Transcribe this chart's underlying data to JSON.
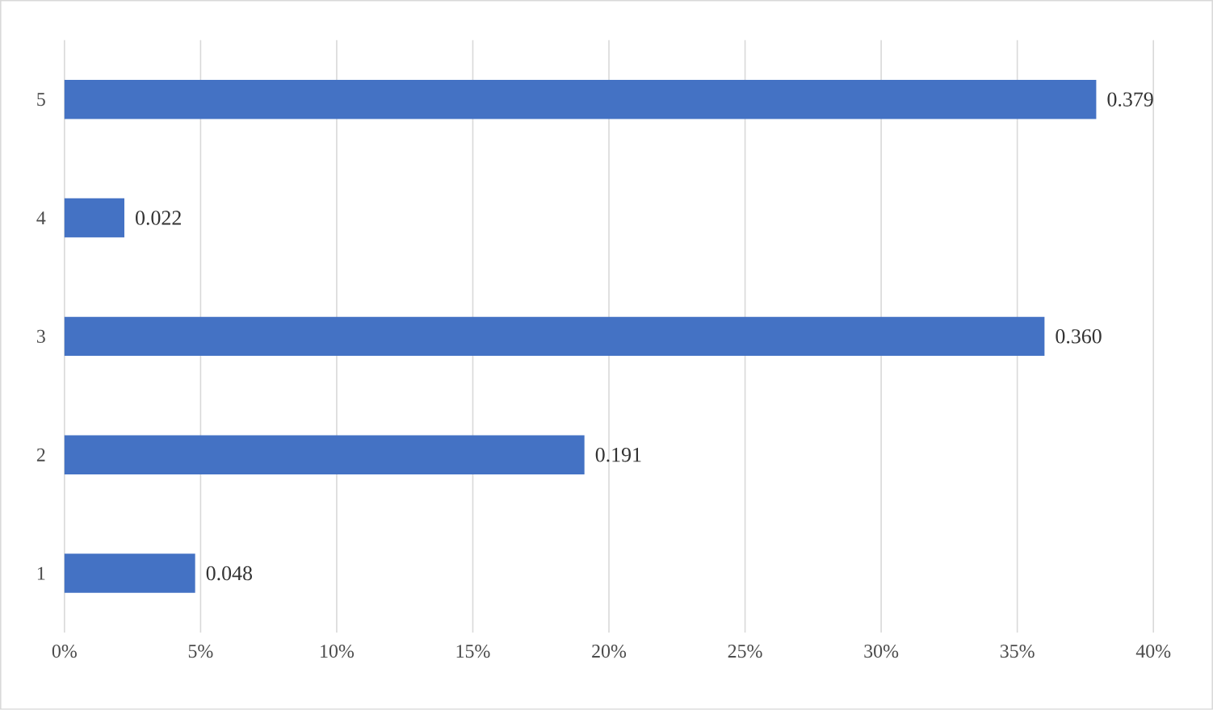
{
  "chart_data": {
    "type": "bar",
    "orientation": "horizontal",
    "categories": [
      "5",
      "4",
      "3",
      "2",
      "1"
    ],
    "values": [
      0.379,
      0.022,
      0.36,
      0.191,
      0.048
    ],
    "value_labels": [
      "0.379",
      "0.022",
      "0.360",
      "0.191",
      "0.048"
    ],
    "color": "#4472c4",
    "xlim": [
      0,
      0.4
    ],
    "xticks": [
      {
        "value": 0,
        "label": "0%"
      },
      {
        "value": 0.05,
        "label": "5%"
      },
      {
        "value": 0.1,
        "label": "10%"
      },
      {
        "value": 0.15,
        "label": "15%"
      },
      {
        "value": 0.2,
        "label": "20%"
      },
      {
        "value": 0.25,
        "label": "25%"
      },
      {
        "value": 0.3,
        "label": "30%"
      },
      {
        "value": 0.35,
        "label": "35%"
      },
      {
        "value": 0.4,
        "label": "40%"
      }
    ],
    "grid": "x"
  }
}
